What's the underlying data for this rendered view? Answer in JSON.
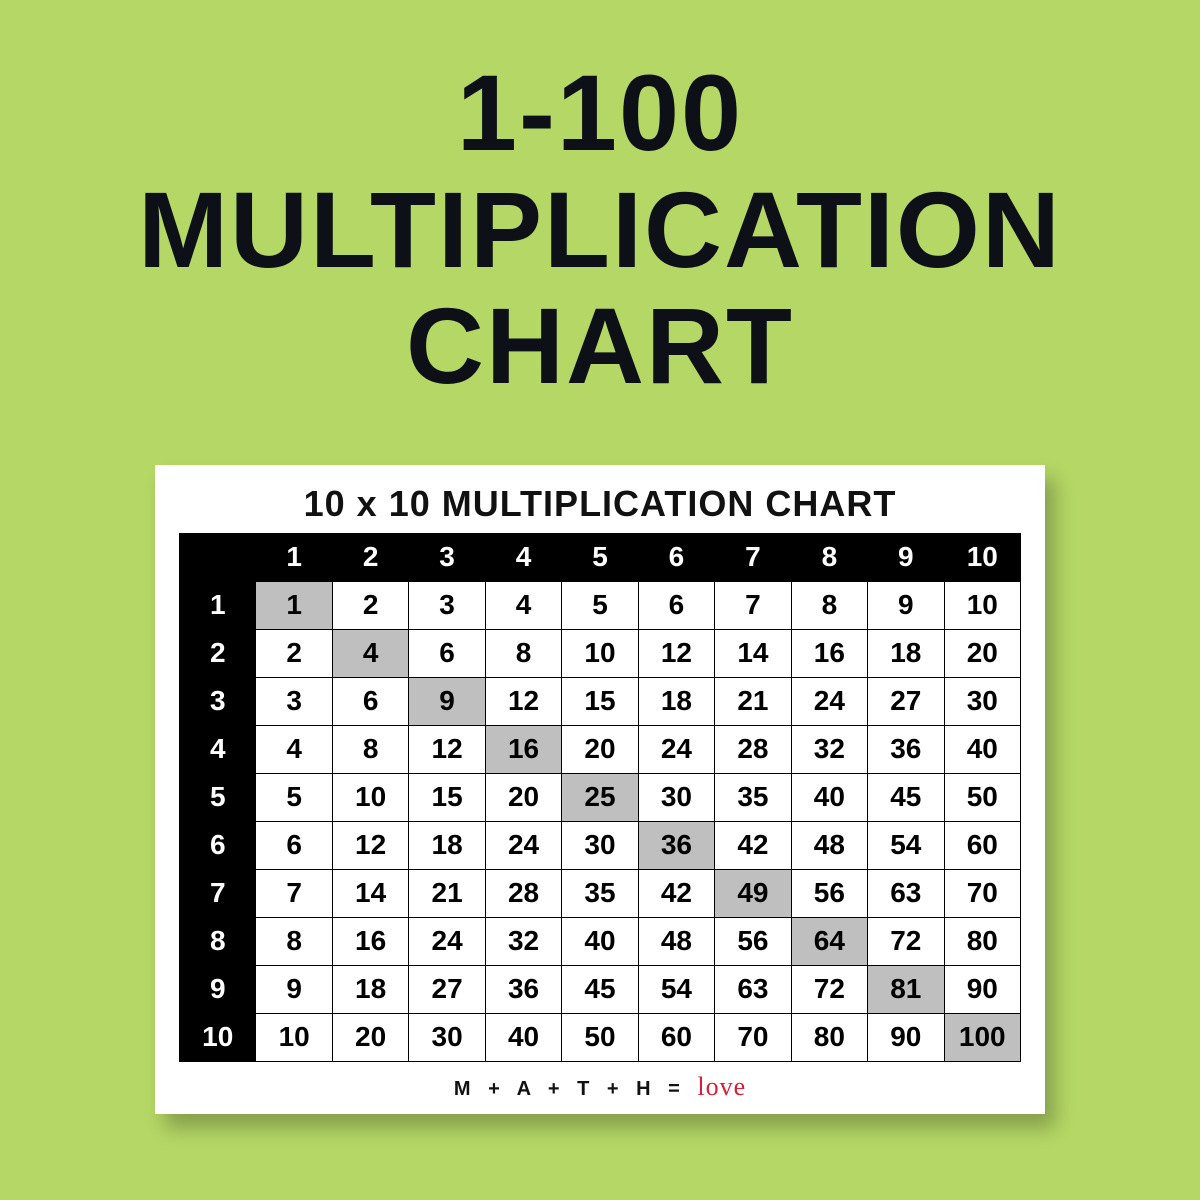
{
  "page": {
    "background_color": "#b4d765",
    "title_lines": [
      "1-100",
      "MULTIPLICATION",
      "CHART"
    ],
    "title_color": "#0d1117",
    "title_fontsize": 108
  },
  "card": {
    "title": "10 x 10 MULTIPLICATION CHART",
    "background_color": "#ffffff",
    "shadow": "10px 14px 18px rgba(0,0,0,0.25)"
  },
  "table": {
    "type": "table",
    "size": 10,
    "col_headers": [
      "1",
      "2",
      "3",
      "4",
      "5",
      "6",
      "7",
      "8",
      "9",
      "10"
    ],
    "row_headers": [
      "1",
      "2",
      "3",
      "4",
      "5",
      "6",
      "7",
      "8",
      "9",
      "10"
    ],
    "rows": [
      [
        "1",
        "2",
        "3",
        "4",
        "5",
        "6",
        "7",
        "8",
        "9",
        "10"
      ],
      [
        "2",
        "4",
        "6",
        "8",
        "10",
        "12",
        "14",
        "16",
        "18",
        "20"
      ],
      [
        "3",
        "6",
        "9",
        "12",
        "15",
        "18",
        "21",
        "24",
        "27",
        "30"
      ],
      [
        "4",
        "8",
        "12",
        "16",
        "20",
        "24",
        "28",
        "32",
        "36",
        "40"
      ],
      [
        "5",
        "10",
        "15",
        "20",
        "25",
        "30",
        "35",
        "40",
        "45",
        "50"
      ],
      [
        "6",
        "12",
        "18",
        "24",
        "30",
        "36",
        "42",
        "48",
        "54",
        "60"
      ],
      [
        "7",
        "14",
        "21",
        "28",
        "35",
        "42",
        "49",
        "56",
        "63",
        "70"
      ],
      [
        "8",
        "16",
        "24",
        "32",
        "40",
        "48",
        "56",
        "64",
        "72",
        "80"
      ],
      [
        "9",
        "18",
        "27",
        "36",
        "45",
        "54",
        "63",
        "72",
        "81",
        "90"
      ],
      [
        "10",
        "20",
        "30",
        "40",
        "50",
        "60",
        "70",
        "80",
        "90",
        "100"
      ]
    ],
    "header_bg": "#000000",
    "header_fg": "#ffffff",
    "cell_bg": "#ffffff",
    "diagonal_bg": "#bfbfbf",
    "border_color": "#000000",
    "cell_fontsize": 28,
    "cell_fontweight": 700
  },
  "footer": {
    "prefix": "M + A + T + H = ",
    "love": "love",
    "love_color": "#d61f3a"
  }
}
